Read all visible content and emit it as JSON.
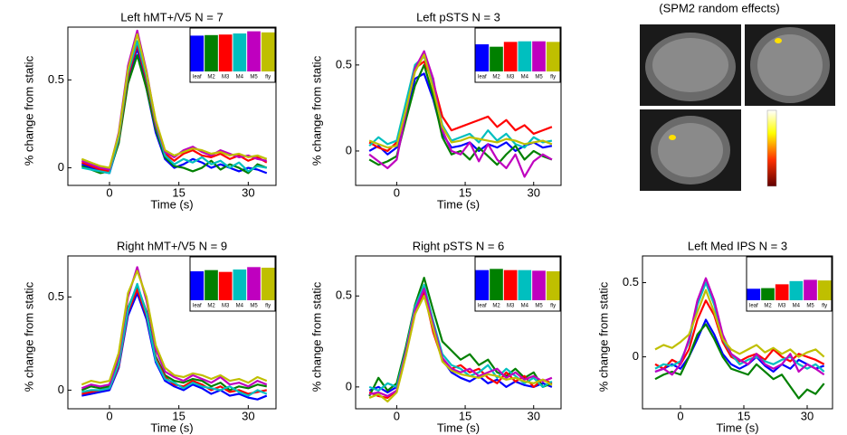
{
  "chart_data": [
    {
      "type": "line",
      "title": "Left hMT+/V5   N = 7",
      "xlabel": "Time (s)",
      "ylabel": "% change from static",
      "x": [
        -6,
        -4,
        -2,
        0,
        2,
        4,
        6,
        8,
        10,
        12,
        14,
        16,
        18,
        20,
        22,
        24,
        26,
        28,
        30,
        32,
        34
      ],
      "xlim": [
        -9,
        36
      ],
      "xticks": [
        0,
        15,
        30
      ],
      "ylim": [
        -0.1,
        0.8
      ],
      "yticks": [
        0,
        0.5
      ],
      "series": [
        {
          "name": "leaf",
          "color": "#0000ff",
          "values": [
            0.02,
            0.0,
            -0.02,
            -0.03,
            0.15,
            0.5,
            0.68,
            0.45,
            0.2,
            0.05,
            0.0,
            0.02,
            0.05,
            0.03,
            0.0,
            0.02,
            0.0,
            -0.02,
            0.0,
            -0.01,
            -0.03
          ]
        },
        {
          "name": "M2",
          "color": "#008000",
          "values": [
            0.01,
            -0.01,
            -0.03,
            -0.02,
            0.14,
            0.48,
            0.64,
            0.45,
            0.22,
            0.06,
            0.01,
            0.0,
            -0.02,
            0.0,
            0.04,
            -0.01,
            0.02,
            0.0,
            -0.03,
            0.02,
            0.0
          ]
        },
        {
          "name": "M3",
          "color": "#ff0000",
          "values": [
            0.03,
            0.01,
            -0.01,
            -0.02,
            0.16,
            0.52,
            0.7,
            0.5,
            0.24,
            0.08,
            0.04,
            0.08,
            0.1,
            0.07,
            0.06,
            0.08,
            0.05,
            0.07,
            0.04,
            0.06,
            0.03
          ]
        },
        {
          "name": "M4",
          "color": "#00bfbf",
          "values": [
            0.0,
            -0.01,
            -0.02,
            -0.03,
            0.17,
            0.54,
            0.72,
            0.52,
            0.25,
            0.07,
            0.02,
            0.05,
            0.03,
            0.06,
            0.02,
            0.04,
            0.0,
            0.03,
            -0.02,
            0.01,
            0.0
          ]
        },
        {
          "name": "M5",
          "color": "#bf00bf",
          "values": [
            0.04,
            0.02,
            0.0,
            -0.01,
            0.2,
            0.58,
            0.78,
            0.55,
            0.26,
            0.09,
            0.06,
            0.1,
            0.12,
            0.09,
            0.07,
            0.1,
            0.08,
            0.06,
            0.07,
            0.05,
            0.04
          ]
        },
        {
          "name": "fly",
          "color": "#bfbf00",
          "values": [
            0.05,
            0.03,
            0.01,
            0.0,
            0.19,
            0.56,
            0.76,
            0.54,
            0.27,
            0.1,
            0.07,
            0.09,
            0.11,
            0.1,
            0.08,
            0.09,
            0.07,
            0.08,
            0.06,
            0.07,
            0.05
          ]
        }
      ],
      "inset_values": [
        0.66,
        0.67,
        0.68,
        0.7,
        0.74,
        0.72
      ]
    },
    {
      "type": "line",
      "title": "Left pSTS   N = 3",
      "xlabel": "Time (s)",
      "ylabel": "% change from static",
      "x": [
        -6,
        -4,
        -2,
        0,
        2,
        4,
        6,
        8,
        10,
        12,
        14,
        16,
        18,
        20,
        22,
        24,
        26,
        28,
        30,
        32,
        34
      ],
      "xlim": [
        -9,
        36
      ],
      "xticks": [
        0,
        15,
        30
      ],
      "ylim": [
        -0.2,
        0.72
      ],
      "yticks": [
        0,
        0.5
      ],
      "series": [
        {
          "name": "leaf",
          "color": "#0000ff",
          "values": [
            0.0,
            0.03,
            -0.02,
            0.02,
            0.2,
            0.42,
            0.45,
            0.3,
            0.1,
            0.02,
            0.03,
            0.05,
            0.0,
            0.04,
            0.02,
            0.05,
            0.0,
            0.03,
            0.05,
            0.02,
            0.03
          ]
        },
        {
          "name": "M2",
          "color": "#008000",
          "values": [
            -0.05,
            -0.08,
            -0.06,
            -0.03,
            0.18,
            0.38,
            0.5,
            0.32,
            0.08,
            -0.02,
            0.0,
            -0.05,
            0.02,
            -0.03,
            -0.08,
            -0.02,
            0.03,
            -0.05,
            0.0,
            -0.03,
            -0.05
          ]
        },
        {
          "name": "M3",
          "color": "#ff0000",
          "values": [
            0.05,
            0.02,
            0.0,
            0.05,
            0.25,
            0.48,
            0.52,
            0.4,
            0.2,
            0.12,
            0.14,
            0.16,
            0.18,
            0.2,
            0.14,
            0.18,
            0.12,
            0.15,
            0.1,
            0.12,
            0.14
          ]
        },
        {
          "name": "M4",
          "color": "#00bfbf",
          "values": [
            0.03,
            0.08,
            0.04,
            0.06,
            0.28,
            0.5,
            0.55,
            0.38,
            0.15,
            0.06,
            0.08,
            0.1,
            0.05,
            0.12,
            0.06,
            0.1,
            0.04,
            0.02,
            0.08,
            0.05,
            0.06
          ]
        },
        {
          "name": "M5",
          "color": "#bf00bf",
          "values": [
            -0.02,
            -0.06,
            -0.1,
            -0.05,
            0.22,
            0.48,
            0.58,
            0.42,
            0.12,
            0.0,
            -0.02,
            0.05,
            -0.06,
            0.04,
            -0.05,
            -0.1,
            -0.02,
            -0.15,
            -0.06,
            -0.02,
            -0.05
          ]
        },
        {
          "name": "fly",
          "color": "#bfbf00",
          "values": [
            0.06,
            0.04,
            0.02,
            0.03,
            0.24,
            0.46,
            0.56,
            0.36,
            0.14,
            0.05,
            0.06,
            0.08,
            0.07,
            0.06,
            0.05,
            0.07,
            0.06,
            0.04,
            0.05,
            0.06,
            0.04
          ]
        }
      ],
      "inset_values": [
        0.45,
        0.41,
        0.49,
        0.5,
        0.5,
        0.49
      ]
    },
    {
      "type": "line",
      "title": "Right hMT+/V5   N = 9",
      "xlabel": "Time (s)",
      "ylabel": "% change from static",
      "x": [
        -6,
        -4,
        -2,
        0,
        2,
        4,
        6,
        8,
        10,
        12,
        14,
        16,
        18,
        20,
        22,
        24,
        26,
        28,
        30,
        32,
        34
      ],
      "xlim": [
        -9,
        36
      ],
      "xticks": [
        0,
        15,
        30
      ],
      "ylim": [
        -0.1,
        0.72
      ],
      "yticks": [
        0,
        0.5
      ],
      "series": [
        {
          "name": "leaf",
          "color": "#0000ff",
          "values": [
            -0.03,
            -0.02,
            -0.01,
            0.0,
            0.12,
            0.4,
            0.52,
            0.38,
            0.15,
            0.05,
            0.02,
            0.0,
            0.03,
            0.01,
            -0.02,
            0.0,
            -0.03,
            -0.02,
            -0.04,
            -0.05,
            -0.03
          ]
        },
        {
          "name": "M2",
          "color": "#008000",
          "values": [
            0.0,
            0.02,
            0.01,
            0.02,
            0.15,
            0.44,
            0.56,
            0.42,
            0.18,
            0.08,
            0.05,
            0.04,
            0.06,
            0.05,
            0.02,
            0.04,
            0.0,
            0.02,
            0.01,
            0.03,
            0.02
          ]
        },
        {
          "name": "M3",
          "color": "#ff0000",
          "values": [
            -0.02,
            -0.01,
            0.0,
            0.01,
            0.13,
            0.42,
            0.54,
            0.4,
            0.17,
            0.07,
            0.03,
            0.02,
            0.05,
            0.03,
            0.0,
            0.02,
            -0.01,
            0.0,
            -0.02,
            -0.01,
            0.0
          ]
        },
        {
          "name": "M4",
          "color": "#00bfbf",
          "values": [
            -0.01,
            0.0,
            0.0,
            0.01,
            0.14,
            0.43,
            0.57,
            0.41,
            0.16,
            0.06,
            0.04,
            0.01,
            0.04,
            0.02,
            0.01,
            0.0,
            0.02,
            -0.01,
            -0.03,
            0.0,
            -0.02
          ]
        },
        {
          "name": "M5",
          "color": "#bf00bf",
          "values": [
            0.01,
            0.03,
            0.02,
            0.03,
            0.18,
            0.5,
            0.66,
            0.48,
            0.22,
            0.1,
            0.07,
            0.05,
            0.08,
            0.06,
            0.04,
            0.07,
            0.03,
            0.04,
            0.02,
            0.05,
            0.03
          ]
        },
        {
          "name": "fly",
          "color": "#bfbf00",
          "values": [
            0.03,
            0.05,
            0.04,
            0.05,
            0.2,
            0.52,
            0.64,
            0.5,
            0.24,
            0.12,
            0.08,
            0.07,
            0.09,
            0.08,
            0.06,
            0.08,
            0.05,
            0.06,
            0.04,
            0.07,
            0.05
          ]
        }
      ],
      "inset_values": [
        0.48,
        0.5,
        0.47,
        0.51,
        0.55,
        0.54
      ]
    },
    {
      "type": "line",
      "title": "Right pSTS   N = 6",
      "xlabel": "Time (s)",
      "ylabel": "% change from static",
      "x": [
        -6,
        -4,
        -2,
        0,
        2,
        4,
        6,
        8,
        10,
        12,
        14,
        16,
        18,
        20,
        22,
        24,
        26,
        28,
        30,
        32,
        34
      ],
      "xlim": [
        -9,
        36
      ],
      "xticks": [
        0,
        15,
        30
      ],
      "ylim": [
        -0.12,
        0.72
      ],
      "yticks": [
        0,
        0.5
      ],
      "series": [
        {
          "name": "leaf",
          "color": "#0000ff",
          "values": [
            -0.02,
            0.0,
            -0.03,
            0.0,
            0.2,
            0.42,
            0.55,
            0.35,
            0.15,
            0.08,
            0.05,
            0.03,
            0.06,
            0.02,
            0.04,
            0.0,
            0.03,
            0.01,
            0.0,
            0.02,
            0.0
          ]
        },
        {
          "name": "M2",
          "color": "#008000",
          "values": [
            -0.05,
            0.05,
            -0.02,
            0.02,
            0.22,
            0.45,
            0.6,
            0.42,
            0.25,
            0.2,
            0.15,
            0.18,
            0.12,
            0.15,
            0.08,
            0.06,
            0.1,
            0.05,
            0.08,
            0.0,
            0.02
          ]
        },
        {
          "name": "M3",
          "color": "#ff0000",
          "values": [
            -0.03,
            -0.05,
            -0.06,
            -0.02,
            0.18,
            0.4,
            0.52,
            0.3,
            0.15,
            0.1,
            0.12,
            0.08,
            0.1,
            0.05,
            0.02,
            0.08,
            0.03,
            0.06,
            0.0,
            0.04,
            0.02
          ]
        },
        {
          "name": "M4",
          "color": "#00bfbf",
          "values": [
            0.0,
            -0.02,
            0.02,
            0.0,
            0.2,
            0.44,
            0.56,
            0.36,
            0.18,
            0.12,
            0.1,
            0.06,
            0.08,
            0.12,
            0.05,
            0.1,
            0.06,
            0.02,
            0.05,
            0.0,
            0.03
          ]
        },
        {
          "name": "M5",
          "color": "#bf00bf",
          "values": [
            -0.04,
            -0.03,
            -0.05,
            -0.02,
            0.19,
            0.42,
            0.54,
            0.34,
            0.16,
            0.1,
            0.08,
            0.1,
            0.06,
            0.08,
            0.1,
            0.05,
            0.08,
            0.04,
            0.06,
            0.03,
            0.05
          ]
        },
        {
          "name": "fly",
          "color": "#bfbf00",
          "values": [
            -0.06,
            -0.04,
            -0.08,
            -0.03,
            0.17,
            0.4,
            0.5,
            0.32,
            0.14,
            0.09,
            0.07,
            0.06,
            0.05,
            0.07,
            0.06,
            0.04,
            0.05,
            0.03,
            0.02,
            0.04,
            0.01
          ]
        }
      ],
      "inset_values": [
        0.5,
        0.52,
        0.5,
        0.5,
        0.49,
        0.48
      ]
    },
    {
      "type": "line",
      "title": "Left Med IPS   N = 3",
      "xlabel": "Time (s)",
      "ylabel": "% change from static",
      "x": [
        -6,
        -4,
        -2,
        0,
        2,
        4,
        6,
        8,
        10,
        12,
        14,
        16,
        18,
        20,
        22,
        24,
        26,
        28,
        30,
        32,
        34
      ],
      "xlim": [
        -9,
        36
      ],
      "xticks": [
        0,
        15,
        30
      ],
      "ylim": [
        -0.35,
        0.68
      ],
      "yticks": [
        0,
        0.5
      ],
      "series": [
        {
          "name": "leaf",
          "color": "#0000ff",
          "values": [
            -0.1,
            -0.08,
            -0.05,
            -0.08,
            0.0,
            0.12,
            0.25,
            0.15,
            0.02,
            -0.05,
            -0.08,
            -0.05,
            0.0,
            -0.06,
            -0.1,
            -0.05,
            -0.08,
            -0.02,
            -0.05,
            -0.08,
            -0.06
          ]
        },
        {
          "name": "M2",
          "color": "#008000",
          "values": [
            -0.15,
            -0.12,
            -0.1,
            -0.12,
            0.0,
            0.15,
            0.22,
            0.12,
            0.0,
            -0.08,
            -0.1,
            -0.12,
            -0.05,
            -0.1,
            -0.15,
            -0.12,
            -0.2,
            -0.28,
            -0.22,
            -0.25,
            -0.18
          ]
        },
        {
          "name": "M3",
          "color": "#ff0000",
          "values": [
            -0.05,
            -0.08,
            -0.02,
            -0.05,
            0.05,
            0.25,
            0.38,
            0.28,
            0.1,
            0.0,
            -0.03,
            0.0,
            0.02,
            -0.02,
            0.05,
            0.0,
            -0.03,
            0.02,
            0.0,
            -0.02,
            -0.05
          ]
        },
        {
          "name": "M4",
          "color": "#00bfbf",
          "values": [
            -0.08,
            -0.05,
            -0.06,
            -0.03,
            0.1,
            0.35,
            0.5,
            0.35,
            0.12,
            0.02,
            -0.05,
            -0.02,
            0.0,
            -0.03,
            -0.05,
            -0.02,
            0.0,
            -0.05,
            -0.08,
            -0.05,
            -0.1
          ]
        },
        {
          "name": "M5",
          "color": "#bf00bf",
          "values": [
            -0.1,
            -0.08,
            -0.12,
            -0.05,
            0.12,
            0.38,
            0.53,
            0.38,
            0.15,
            0.02,
            -0.02,
            -0.05,
            0.02,
            -0.05,
            -0.08,
            -0.05,
            0.02,
            -0.1,
            -0.05,
            -0.08,
            -0.12
          ]
        },
        {
          "name": "fly",
          "color": "#bfbf00",
          "values": [
            0.05,
            0.08,
            0.06,
            0.1,
            0.15,
            0.3,
            0.45,
            0.3,
            0.12,
            0.05,
            0.02,
            0.05,
            0.08,
            0.03,
            0.06,
            0.02,
            0.05,
            0.0,
            0.03,
            0.05,
            0.0
          ]
        }
      ],
      "inset_values": [
        0.18,
        0.19,
        0.25,
        0.3,
        0.32,
        0.31
      ]
    }
  ],
  "image_panel": {
    "title": "(SPM2 random effects)"
  }
}
